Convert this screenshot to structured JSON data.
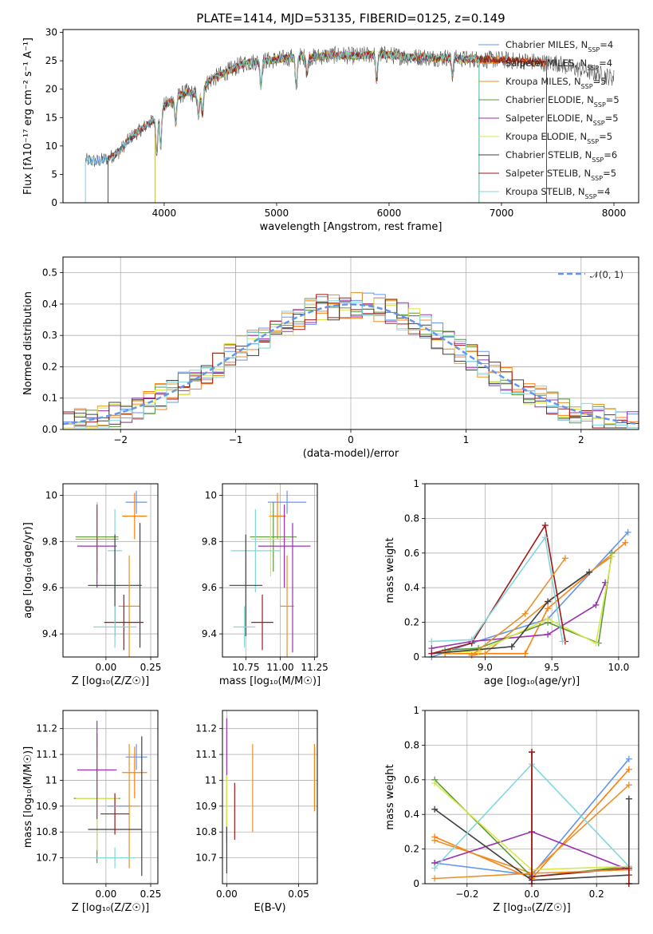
{
  "figure_title": "PLATE=1414, MJD=53135, FIBERID=0125, z=0.149",
  "series_names": [
    "Chabrier MILES, N_SSP=4",
    "Salpeter MILES, N_SSP=4",
    "Kroupa MILES, N_SSP=5",
    "Chabrier ELODIE, N_SSP=5",
    "Salpeter ELODIE, N_SSP=5",
    "Kroupa ELODIE, N_SSP=5",
    "Chabrier STELIB, N_SSP=6",
    "Salpeter STELIB, N_SSP=5",
    "Kroupa STELIB, N_SSP=4"
  ],
  "series_colors": [
    "#6495ed",
    "#ff7f0e",
    "#e8912a",
    "#5a9a3a",
    "#9b30b0",
    "#d8e84a",
    "#404040",
    "#a01818",
    "#80d8dc"
  ],
  "chart_data": [
    {
      "id": "spectrum",
      "type": "line",
      "xlabel": "wavelength [Angstrom, rest frame]",
      "ylabel": "Flux [fλ10⁻¹⁷ erg cm⁻² s⁻¹ A⁻¹]",
      "xlim": [
        3100,
        8220
      ],
      "ylim": [
        0,
        30.5
      ],
      "xticks": [
        4000,
        5000,
        6000,
        7000,
        8000
      ],
      "yticks": [
        0,
        5,
        10,
        15,
        20,
        25,
        30
      ],
      "legend_position": "right",
      "data_continuum": {
        "x": [
          3300,
          3400,
          3500,
          3600,
          3700,
          3800,
          3900,
          4000,
          4100,
          4200,
          4300,
          4400,
          4500,
          4600,
          4700,
          4800,
          4900,
          5000,
          5100,
          5200,
          5300,
          5400,
          5500,
          5600,
          5700,
          5800,
          5900,
          6000,
          6100,
          6200,
          6300,
          6400,
          6500,
          6600,
          6700,
          6800,
          6900,
          7000,
          7100,
          7200,
          7300,
          7400,
          7500,
          7600,
          7700,
          7800,
          7900,
          8000
        ],
        "y": [
          7.5,
          7.3,
          7.8,
          9.0,
          11.5,
          13.0,
          14.5,
          17.0,
          18.5,
          19.5,
          19.0,
          21.5,
          22.5,
          23.5,
          24.5,
          24.8,
          25.0,
          25.2,
          25.5,
          25.8,
          25.6,
          25.8,
          26.0,
          26.0,
          25.8,
          26.0,
          26.2,
          26.0,
          25.8,
          25.6,
          25.7,
          25.5,
          25.6,
          25.4,
          25.3,
          25.3,
          25.2,
          25.2,
          25.0,
          25.0,
          24.8,
          24.6,
          24.6,
          23.8,
          23.5,
          23.0,
          22.5,
          22.0
        ]
      },
      "model_range": [
        3300,
        7400
      ],
      "model_starts": [
        3300,
        3500,
        3920,
        3920,
        3920,
        3920,
        3500,
        3500,
        3300
      ],
      "model_ends": [
        6800,
        7400,
        6800,
        6800,
        6800,
        6800,
        7400,
        7400,
        6800
      ]
    },
    {
      "id": "residual_histogram",
      "type": "bar",
      "xlabel": "(data-model)/error",
      "ylabel": "Normed distribution",
      "xlim": [
        -2.5,
        2.5
      ],
      "ylim": [
        0,
        0.55
      ],
      "xticks": [
        -2,
        -1,
        0,
        1,
        2
      ],
      "yticks": [
        0.0,
        0.1,
        0.2,
        0.3,
        0.4,
        0.5
      ],
      "legend": "𝒩(0, 1)",
      "legend_position": "top-right",
      "bin_width": 0.1,
      "bins_from": -2.5
    },
    {
      "id": "age_vs_Z",
      "type": "scatter",
      "xlabel": "Z [log₁₀(Z/Z☉)]",
      "ylabel": "age  [log₁₀(age/yr)]",
      "xlim": [
        -0.24,
        0.29
      ],
      "ylim": [
        9.3,
        10.05
      ],
      "xticks": [
        0.0,
        0.25
      ],
      "xtick_labels": [
        "0.00",
        "0.25"
      ],
      "yticks": [
        9.4,
        9.6,
        9.8,
        10.0
      ],
      "points": [
        {
          "s": 0,
          "x": 0.17,
          "y": 9.97,
          "xerr": 0.06,
          "yerr": 0.05
        },
        {
          "s": 1,
          "x": 0.16,
          "y": 9.91,
          "xerr": 0.07,
          "yerr": 0.1
        },
        {
          "s": 3,
          "x": -0.05,
          "y": 9.82,
          "xerr": 0.12,
          "yerr": 0.15
        },
        {
          "s": 5,
          "x": -0.05,
          "y": 9.81,
          "xerr": 0.12,
          "yerr": 0.16
        },
        {
          "s": 2,
          "x": -0.05,
          "y": 9.81,
          "xerr": 0.12,
          "yerr": 0.14
        },
        {
          "s": 4,
          "x": -0.05,
          "y": 9.78,
          "xerr": 0.11,
          "yerr": 0.18
        },
        {
          "s": 8,
          "x": 0.05,
          "y": 9.76,
          "xerr": 0.04,
          "yerr": 0.18
        },
        {
          "s": 6,
          "x": 0.05,
          "y": 9.61,
          "xerr": 0.15,
          "yerr": 0.22
        },
        {
          "s": 2,
          "x": 0.13,
          "y": 9.52,
          "xerr": 0.06,
          "yerr": 0.22
        },
        {
          "s": 7,
          "x": 0.1,
          "y": 9.45,
          "xerr": 0.11,
          "yerr": 0.12
        },
        {
          "s": 8,
          "x": 0.05,
          "y": 9.43,
          "xerr": 0.12,
          "yerr": 0.09
        },
        {
          "s": 6,
          "x": 0.19,
          "y": 9.61,
          "xerr": 0.0,
          "yerr": 0.27
        }
      ]
    },
    {
      "id": "age_vs_mass",
      "type": "scatter",
      "xlabel": "mass [log₁₀(M/M☉)]",
      "ylabel": "",
      "xlim": [
        10.58,
        11.27
      ],
      "ylim": [
        9.3,
        10.05
      ],
      "xticks": [
        10.75,
        11.0,
        11.25
      ],
      "xtick_labels": [
        "10.75",
        "11.00",
        "11.25"
      ],
      "yticks": [
        9.4,
        9.6,
        9.8,
        10.0
      ],
      "points": [
        {
          "s": 0,
          "x": 11.05,
          "y": 9.97,
          "xerr": 0.14,
          "yerr": 0.05
        },
        {
          "s": 1,
          "x": 10.98,
          "y": 9.91,
          "xerr": 0.06,
          "yerr": 0.1
        },
        {
          "s": 3,
          "x": 10.95,
          "y": 9.82,
          "xerr": 0.17,
          "yerr": 0.15
        },
        {
          "s": 5,
          "x": 10.93,
          "y": 9.81,
          "xerr": 0.14,
          "yerr": 0.16
        },
        {
          "s": 4,
          "x": 11.03,
          "y": 9.78,
          "xerr": 0.19,
          "yerr": 0.18
        },
        {
          "s": 8,
          "x": 10.82,
          "y": 9.76,
          "xerr": 0.18,
          "yerr": 0.18
        },
        {
          "s": 6,
          "x": 10.75,
          "y": 9.61,
          "xerr": 0.12,
          "yerr": 0.22
        },
        {
          "s": 2,
          "x": 11.05,
          "y": 9.52,
          "xerr": 0.05,
          "yerr": 0.22
        },
        {
          "s": 7,
          "x": 10.87,
          "y": 9.45,
          "xerr": 0.08,
          "yerr": 0.12
        },
        {
          "s": 8,
          "x": 10.74,
          "y": 9.43,
          "xerr": 0.08,
          "yerr": 0.09
        },
        {
          "s": 4,
          "x": 11.09,
          "y": 9.6,
          "xerr": 0.0,
          "yerr": 0.28
        }
      ]
    },
    {
      "id": "mass_weight_vs_age",
      "type": "line",
      "xlabel": "age  [log₁₀(age/yr)]",
      "ylabel": "mass weight",
      "xlim": [
        8.55,
        10.15
      ],
      "ylim": [
        0,
        1.0
      ],
      "xticks": [
        9.0,
        9.5,
        10.0
      ],
      "xtick_labels": [
        "9.0",
        "9.5",
        "10.0"
      ],
      "yticks": [
        0.0,
        0.2,
        0.4,
        0.6,
        0.8,
        1.0
      ],
      "series": [
        {
          "s": 0,
          "x": [
            8.6,
            8.9,
            9.47,
            10.07
          ],
          "y": [
            0.0,
            0.08,
            0.22,
            0.72
          ]
        },
        {
          "s": 1,
          "x": [
            8.7,
            9.3,
            9.47,
            10.05
          ],
          "y": [
            0.02,
            0.02,
            0.28,
            0.66
          ]
        },
        {
          "s": 2,
          "x": [
            8.9,
            9.0,
            9.47,
            9.95
          ],
          "y": [
            0.01,
            0.02,
            0.32,
            0.58
          ]
        },
        {
          "s": 3,
          "x": [
            8.7,
            8.95,
            9.47,
            9.85,
            9.95
          ],
          "y": [
            0.04,
            0.05,
            0.2,
            0.08,
            0.6
          ]
        },
        {
          "s": 4,
          "x": [
            8.6,
            8.9,
            9.47,
            9.83,
            9.9
          ],
          "y": [
            0.05,
            0.09,
            0.13,
            0.3,
            0.43
          ]
        },
        {
          "s": 5,
          "x": [
            8.75,
            8.95,
            9.47,
            9.83,
            9.95
          ],
          "y": [
            0.03,
            0.03,
            0.22,
            0.08,
            0.58
          ]
        },
        {
          "s": 6,
          "x": [
            8.6,
            9.2,
            9.47,
            9.78
          ],
          "y": [
            0.02,
            0.06,
            0.32,
            0.49
          ]
        },
        {
          "s": 7,
          "x": [
            8.6,
            8.9,
            9.45,
            9.6
          ],
          "y": [
            0.02,
            0.08,
            0.76,
            0.09
          ]
        },
        {
          "s": 8,
          "x": [
            8.6,
            8.9,
            9.45,
            9.58
          ],
          "y": [
            0.09,
            0.1,
            0.69,
            0.09
          ]
        },
        {
          "s": 2,
          "x": [
            8.9,
            9.3,
            9.6
          ],
          "y": [
            0.01,
            0.25,
            0.57
          ]
        }
      ]
    },
    {
      "id": "mass_vs_Z",
      "type": "scatter",
      "xlabel": "Z [log₁₀(Z/Z☉)]",
      "ylabel": "mass [log₁₀(M/M☉)]",
      "xlim": [
        -0.24,
        0.29
      ],
      "ylim": [
        10.6,
        11.27
      ],
      "xticks": [
        0.0,
        0.25
      ],
      "xtick_labels": [
        "0.00",
        "0.25"
      ],
      "yticks": [
        10.7,
        10.8,
        10.9,
        11.0,
        11.1,
        11.2
      ],
      "points": [
        {
          "s": 0,
          "x": 0.17,
          "y": 11.09,
          "xerr": 0.06,
          "yerr": 0.05
        },
        {
          "s": 1,
          "x": 0.16,
          "y": 11.03,
          "xerr": 0.07,
          "yerr": 0.1
        },
        {
          "s": 3,
          "x": -0.05,
          "y": 10.93,
          "xerr": 0.13,
          "yerr": 0.25
        },
        {
          "s": 5,
          "x": -0.05,
          "y": 10.93,
          "xerr": 0.12,
          "yerr": 0.2
        },
        {
          "s": 4,
          "x": -0.05,
          "y": 11.04,
          "xerr": 0.11,
          "yerr": 0.19
        },
        {
          "s": 2,
          "x": 0.13,
          "y": 10.9,
          "xerr": 0.06,
          "yerr": 0.24
        },
        {
          "s": 8,
          "x": 0.05,
          "y": 10.7,
          "xerr": 0.11,
          "yerr": 0.04
        },
        {
          "s": 6,
          "x": 0.05,
          "y": 10.81,
          "xerr": 0.15,
          "yerr": 0.0
        },
        {
          "s": 7,
          "x": 0.05,
          "y": 10.87,
          "xerr": 0.08,
          "yerr": 0.08
        },
        {
          "s": 6,
          "x": 0.2,
          "y": 10.9,
          "xerr": 0.0,
          "yerr": 0.27
        },
        {
          "s": 0,
          "x": 0.07,
          "y": 10.9,
          "xerr": 0.06,
          "yerr": 0.0
        }
      ]
    },
    {
      "id": "mass_vs_EBV",
      "type": "scatter",
      "xlabel": "E(B-V)",
      "ylabel": "",
      "xlim": [
        -0.003,
        0.063
      ],
      "ylim": [
        10.6,
        11.27
      ],
      "xticks": [
        0.0,
        0.05
      ],
      "xtick_labels": [
        "0.00",
        "0.05"
      ],
      "yticks": [
        10.7,
        10.8,
        10.9,
        11.0,
        11.1,
        11.2
      ],
      "points": [
        {
          "s": 4,
          "x": 0.0,
          "y": 11.0,
          "xerr": 0.0,
          "yerr": 0.24
        },
        {
          "s": 5,
          "x": 0.0,
          "y": 10.92,
          "xerr": 0.0,
          "yerr": 0.1
        },
        {
          "s": 6,
          "x": 0.0,
          "y": 10.73,
          "xerr": 0.0,
          "yerr": 0.09
        },
        {
          "s": 7,
          "x": 0.0055,
          "y": 10.88,
          "xerr": 0.0,
          "yerr": 0.11
        },
        {
          "s": 2,
          "x": 0.018,
          "y": 10.97,
          "xerr": 0.0,
          "yerr": 0.17
        },
        {
          "s": 1,
          "x": 0.061,
          "y": 11.01,
          "xerr": 0.0,
          "yerr": 0.13
        }
      ]
    },
    {
      "id": "mass_weight_vs_Z",
      "type": "line",
      "xlabel": "Z [log₁₀(Z/Z☉)]",
      "ylabel": "mass weight",
      "xlim": [
        -0.33,
        0.33
      ],
      "ylim": [
        0,
        1.0
      ],
      "xticks": [
        -0.2,
        0.0,
        0.2
      ],
      "xtick_labels": [
        "−0.2",
        "0.0",
        "0.2"
      ],
      "yticks": [
        0.0,
        0.2,
        0.4,
        0.6,
        0.8,
        1.0
      ],
      "series": [
        {
          "s": 0,
          "x": [
            -0.3,
            0.0,
            0.3
          ],
          "y": [
            0.12,
            0.05,
            0.72
          ]
        },
        {
          "s": 1,
          "x": [
            -0.3,
            0.0,
            0.3
          ],
          "y": [
            0.27,
            0.03,
            0.66
          ]
        },
        {
          "s": 2,
          "x": [
            -0.3,
            0.0,
            0.3
          ],
          "y": [
            0.25,
            0.06,
            0.57
          ]
        },
        {
          "s": 3,
          "x": [
            -0.3,
            0.0,
            0.3
          ],
          "y": [
            0.6,
            0.04,
            0.1
          ]
        },
        {
          "s": 4,
          "x": [
            -0.3,
            0.0,
            0.3
          ],
          "y": [
            0.12,
            0.3,
            0.08
          ]
        },
        {
          "s": 5,
          "x": [
            -0.3,
            0.0,
            0.3
          ],
          "y": [
            0.58,
            0.08,
            0.1
          ]
        },
        {
          "s": 6,
          "x": [
            -0.3,
            0.0,
            0.3
          ],
          "y": [
            0.43,
            0.02,
            0.05
          ]
        },
        {
          "s": 7,
          "x": [
            0.0,
            0.0,
            0.3
          ],
          "y": [
            0.76,
            0.04,
            0.09
          ]
        },
        {
          "s": 8,
          "x": [
            -0.3,
            0.0,
            0.3
          ],
          "y": [
            0.09,
            0.69,
            0.1
          ]
        },
        {
          "s": 2,
          "x": [
            -0.3,
            0.0,
            0.3
          ],
          "y": [
            0.03,
            0.06,
            0.08
          ]
        },
        {
          "s": 6,
          "x": [
            0.3,
            0.3
          ],
          "y": [
            0.49,
            0.0
          ]
        },
        {
          "s": 7,
          "x": [
            0.3,
            0.3
          ],
          "y": [
            0.09,
            0.0
          ]
        },
        {
          "s": 7,
          "x": [
            0.0,
            0.0
          ],
          "y": [
            0.76,
            0.0
          ]
        }
      ]
    }
  ]
}
